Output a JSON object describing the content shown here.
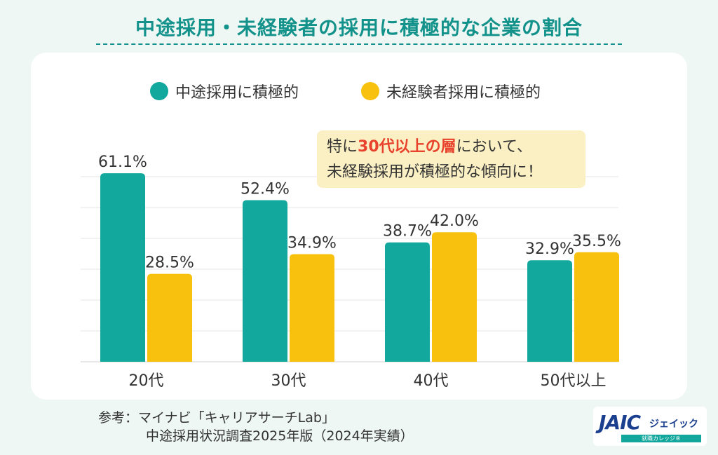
{
  "title": "中途採用・未経験者の採用に積極的な企業の割合",
  "legend": {
    "midcareer_label": "中途採用に積極的",
    "inexperienced_label": "未経験者採用に積極的"
  },
  "callout": {
    "line1_pre": "特に",
    "line1_highlight": "30代以上の層",
    "line1_post": "において、",
    "line2": "未経験採用が積極的な傾向に！"
  },
  "source": {
    "line1": "参考：マイナビ「キャリアサーチLab」",
    "line2": "中途採用状況調査2025年版（2024年実績）"
  },
  "logo": {
    "mark": "JAIC",
    "kana": "ジェイック",
    "tagline": "就職カレッジ®"
  },
  "colors": {
    "title": "#12928a",
    "midcareer": "#12a89e",
    "inexperienced": "#f7c10d",
    "highlight": "#e8412c"
  },
  "chart_data": {
    "type": "bar",
    "categories": [
      "20代",
      "30代",
      "40代",
      "50代以上"
    ],
    "series": [
      {
        "name": "中途採用に積極的",
        "values": [
          61.1,
          52.4,
          38.7,
          32.9
        ],
        "labels": [
          "61.1%",
          "52.4%",
          "38.7%",
          "32.9%"
        ]
      },
      {
        "name": "未経験者採用に積極的",
        "values": [
          28.5,
          34.9,
          42.0,
          35.5
        ],
        "labels": [
          "28.5%",
          "34.9%",
          "42.0%",
          "35.5%"
        ]
      }
    ],
    "ylim": [
      0,
      70
    ],
    "grid": true,
    "legend_position": "top"
  }
}
